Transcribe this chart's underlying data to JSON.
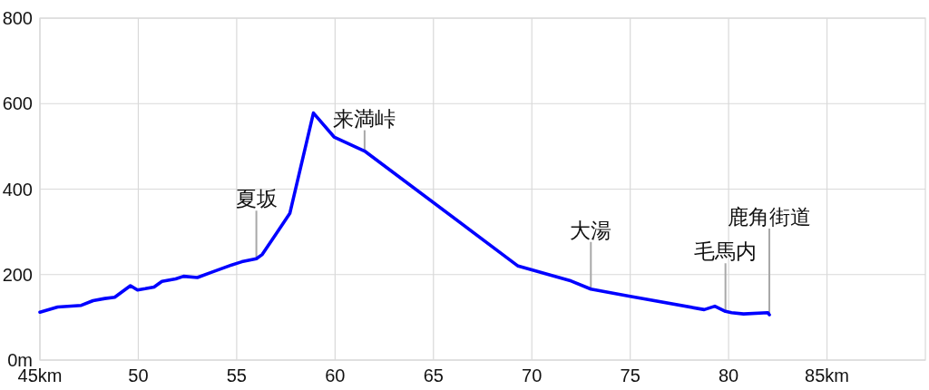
{
  "chart_data": {
    "type": "line",
    "color": "#0000ff",
    "x": [
      45,
      45.9,
      47.1,
      47.7,
      48.3,
      48.8,
      49.6,
      49.96,
      50.35,
      50.8,
      51.2,
      51.9,
      52.3,
      53.0,
      53.7,
      54.65,
      55.26,
      56.0,
      56.3,
      57.7,
      58.9,
      59.95,
      61.5,
      69.3,
      72.0,
      73.0,
      75.0,
      78.76,
      79.3,
      79.84,
      80.15,
      80.76,
      81.99,
      82.07
    ],
    "values": [
      112,
      124,
      128,
      139,
      144,
      147,
      174,
      164,
      167,
      171,
      184,
      190,
      196,
      193,
      205,
      221,
      230,
      237,
      247,
      343,
      578,
      522,
      489,
      220,
      185,
      166,
      149,
      118,
      126,
      114,
      111,
      108,
      111,
      106
    ],
    "xlim": [
      45,
      90
    ],
    "ylim": [
      0,
      800
    ],
    "xticks": [
      {
        "value": 45,
        "label": "45km"
      },
      50,
      55,
      60,
      65,
      70,
      75,
      80,
      {
        "value": 85,
        "label": "85km"
      }
    ],
    "yticks": [
      {
        "value": 0,
        "label": "0m"
      },
      200,
      400,
      600,
      800
    ],
    "grid": true,
    "annotations": [
      {
        "text": "夏坂",
        "x": 56.0,
        "y": 237
      },
      {
        "text": "来満峠",
        "x": 61.5,
        "y": 489
      },
      {
        "text": "大湯",
        "x": 73.0,
        "y": 166
      },
      {
        "text": "毛馬内",
        "x": 79.84,
        "y": 114
      },
      {
        "text": "鹿角街道",
        "x": 82.07,
        "y": 106
      }
    ]
  }
}
